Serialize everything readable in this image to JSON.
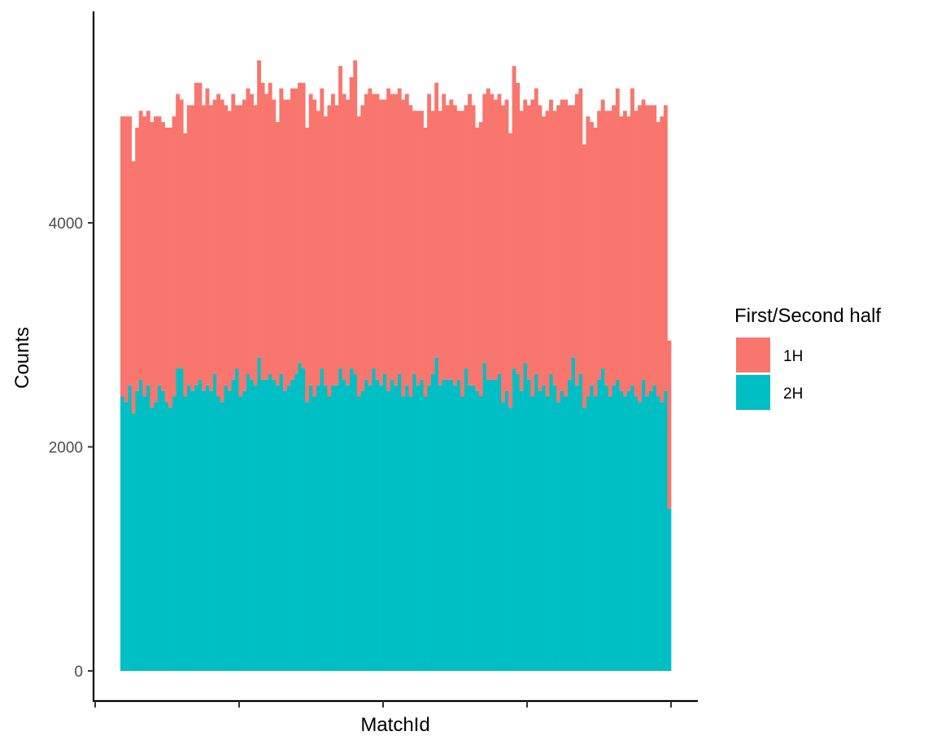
{
  "chart_data": {
    "type": "bar",
    "stacked": true,
    "xlabel": "MatchId",
    "ylabel": "Counts",
    "ylim": [
      0,
      5850
    ],
    "yticks": [
      0,
      2000,
      4000
    ],
    "ytick_labels": [
      "0",
      "2000",
      "4000"
    ],
    "x_tick_labels_shown": false,
    "grid": false,
    "legend": {
      "title": "First/Second half",
      "position": "right",
      "entries": [
        {
          "label": "1H",
          "color": "#F8766D"
        },
        {
          "label": "2H",
          "color": "#00BFC4"
        }
      ]
    },
    "bin_count": 149,
    "series": [
      {
        "name": "2H",
        "color": "#00BFC4",
        "values": [
          2450,
          2400,
          2550,
          2300,
          2500,
          2600,
          2450,
          2550,
          2350,
          2400,
          2550,
          2500,
          2400,
          2350,
          2450,
          2700,
          2700,
          2450,
          2550,
          2500,
          2550,
          2600,
          2500,
          2550,
          2500,
          2650,
          2450,
          2400,
          2550,
          2500,
          2600,
          2700,
          2450,
          2500,
          2650,
          2600,
          2550,
          2800,
          2600,
          2600,
          2650,
          2600,
          2550,
          2650,
          2500,
          2550,
          2600,
          2650,
          2750,
          2700,
          2400,
          2550,
          2450,
          2550,
          2700,
          2550,
          2450,
          2550,
          2550,
          2700,
          2600,
          2550,
          2700,
          2650,
          2450,
          2500,
          2600,
          2550,
          2700,
          2600,
          2550,
          2650,
          2500,
          2600,
          2550,
          2650,
          2450,
          2550,
          2450,
          2650,
          2550,
          2600,
          2450,
          2550,
          2650,
          2800,
          2550,
          2600,
          2600,
          2600,
          2550,
          2600,
          2450,
          2700,
          2550,
          2550,
          2500,
          2450,
          2750,
          2600,
          2600,
          2600,
          2650,
          2400,
          2500,
          2350,
          2700,
          2650,
          2500,
          2750,
          2600,
          2450,
          2650,
          2500,
          2550,
          2450,
          2650,
          2550,
          2400,
          2500,
          2450,
          2600,
          2800,
          2550,
          2650,
          2350,
          2450,
          2550,
          2450,
          2600,
          2700,
          2550,
          2450,
          2550,
          2600,
          2500,
          2450,
          2500,
          2550,
          2450,
          2400,
          2600,
          2450,
          2500,
          2550,
          2450,
          2400,
          2500,
          1450
        ]
      },
      {
        "name": "1H",
        "color": "#F8766D",
        "values": [
          2500,
          2550,
          2400,
          2250,
          2350,
          2400,
          2500,
          2450,
          2550,
          2550,
          2400,
          2400,
          2450,
          2500,
          2500,
          2450,
          2400,
          2350,
          2500,
          2550,
          2700,
          2650,
          2550,
          2650,
          2550,
          2450,
          2700,
          2700,
          2500,
          2500,
          2550,
          2350,
          2600,
          2600,
          2550,
          2550,
          2500,
          2650,
          2650,
          2550,
          2600,
          2500,
          2350,
          2550,
          2600,
          2550,
          2600,
          2550,
          2500,
          2550,
          2450,
          2600,
          2650,
          2450,
          2500,
          2400,
          2600,
          2600,
          2500,
          2700,
          2550,
          2550,
          2600,
          2800,
          2500,
          2550,
          2550,
          2650,
          2450,
          2550,
          2550,
          2450,
          2700,
          2550,
          2600,
          2550,
          2650,
          2600,
          2600,
          2350,
          2450,
          2400,
          2400,
          2600,
          2350,
          2450,
          2450,
          2550,
          2450,
          2500,
          2500,
          2400,
          2550,
          2350,
          2600,
          2500,
          2350,
          2450,
          2400,
          2600,
          2550,
          2500,
          2500,
          2650,
          2600,
          2450,
          2700,
          2600,
          2500,
          2350,
          2450,
          2650,
          2550,
          2550,
          2400,
          2550,
          2450,
          2450,
          2650,
          2600,
          2650,
          2450,
          2250,
          2600,
          2550,
          2350,
          2500,
          2350,
          2400,
          2400,
          2400,
          2450,
          2550,
          2500,
          2600,
          2450,
          2550,
          2450,
          2650,
          2550,
          2650,
          2500,
          2600,
          2550,
          2500,
          2450,
          2550,
          2550,
          1500
        ]
      }
    ]
  }
}
